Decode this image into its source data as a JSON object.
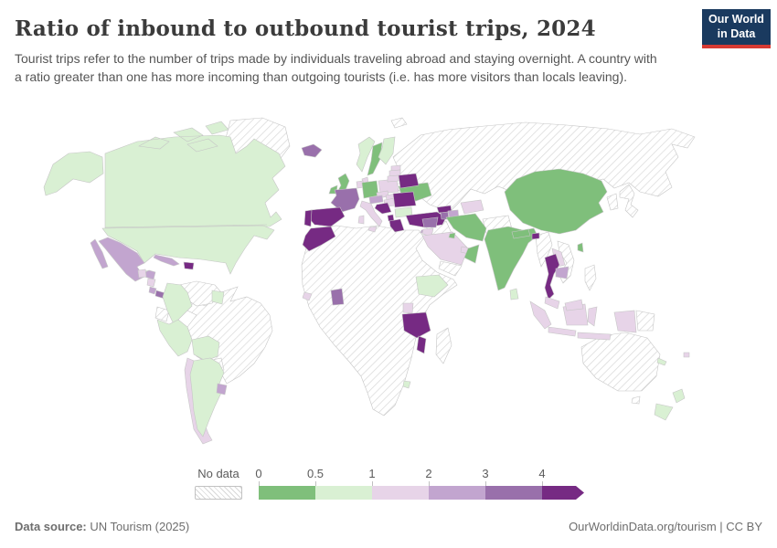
{
  "header": {
    "title": "Ratio of inbound to outbound tourist trips, 2024",
    "subtitle": "Tourist trips refer to the number of trips made by individuals traveling abroad and staying overnight. A country with a ratio greater than one has more incoming than outgoing tourists (i.e. has more visitors than locals leaving).",
    "logo": {
      "line1": "Our World",
      "line2": "in Data",
      "bg_color": "#1a3a5f",
      "accent_color": "#d73a33"
    }
  },
  "legend": {
    "no_data_label": "No data",
    "ticks": [
      "0",
      "0.5",
      "1",
      "2",
      "3",
      "4"
    ],
    "bins": [
      {
        "label": "0-0.5",
        "color": "#7fbf7b"
      },
      {
        "label": "0.5-1",
        "color": "#d9f0d3"
      },
      {
        "label": "1-2",
        "color": "#e7d4e8"
      },
      {
        "label": "2-3",
        "color": "#c2a5cf"
      },
      {
        "label": "3-4",
        "color": "#9970ab"
      },
      {
        "label": "4+",
        "color": "#762a83"
      }
    ]
  },
  "footer": {
    "source_label": "Data source:",
    "source_value": " UN Tourism (2025)",
    "right_text": "OurWorldinData.org/tourism | CC BY"
  },
  "chart_data": {
    "type": "choropleth",
    "title": "Ratio of inbound to outbound tourist trips, 2024",
    "unit": "ratio of inbound to outbound tourist trips",
    "bins": [
      {
        "label": "0-0.5",
        "color": "#7fbf7b"
      },
      {
        "label": "0.5-1",
        "color": "#d9f0d3"
      },
      {
        "label": "1-2",
        "color": "#e7d4e8"
      },
      {
        "label": "2-3",
        "color": "#c2a5cf"
      },
      {
        "label": "3-4",
        "color": "#9970ab"
      },
      {
        "label": "4+",
        "color": "#762a83"
      }
    ],
    "countries": {
      "Canada": "0.5-1",
      "United States": "0.5-1",
      "Mexico": "2-3",
      "Cuba": "2-3",
      "Dominican Republic": "4+",
      "Guatemala": "1-2",
      "Nicaragua": "1-2",
      "Costa Rica": "2-3",
      "Panama": "3-4",
      "Colombia": "0.5-1",
      "Peru": "0.5-1",
      "Bolivia": "0.5-1",
      "Chile": "1-2",
      "Argentina": "0.5-1",
      "Uruguay": "2-3",
      "Guyana": "0.5-1",
      "Iceland": "3-4",
      "United Kingdom": "0-0.5",
      "Ireland": "0-0.5",
      "Norway": "0.5-1",
      "Sweden": "0-0.5",
      "Finland": "0.5-1",
      "Denmark": "1-2",
      "Netherlands": "1-2",
      "Germany": "0-0.5",
      "France": "3-4",
      "Spain": "4+",
      "Portugal": "4+",
      "Italy": "1-2",
      "Austria": "2-3",
      "Czechia": "1-2",
      "Slovakia": "1-2",
      "Poland": "1-2",
      "Estonia": "1-2",
      "Latvia": "1-2",
      "Lithuania": "1-2",
      "Belarus": "4+",
      "Ukraine": "0-0.5",
      "Hungary": "1-2",
      "Romania": "4+",
      "Croatia": "4+",
      "Albania": "4+",
      "Greece": "4+",
      "Bulgaria": "0.5-1",
      "Turkey": "4+",
      "Cyprus": "2-3",
      "Georgia": "4+",
      "Armenia": "3-4",
      "Azerbaijan": "2-3",
      "Morocco": "4+",
      "Sierra Leone": "1-2",
      "Ghana": "3-4",
      "Ethiopia": "0.5-1",
      "Uganda": "1-2",
      "Tanzania": "4+",
      "Malawi": "4+",
      "Eswatini": "0.5-1",
      "Syria": "3-4",
      "Jordan": "1-2",
      "Saudi Arabia": "1-2",
      "Kuwait": "0-0.5",
      "United Arab Emirates": "1-2",
      "Oman": "0-0.5",
      "Iran": "0-0.5",
      "Uzbekistan": "1-2",
      "China": "0-0.5",
      "Taiwan": "0-0.5",
      "India": "0-0.5",
      "Nepal": "0-0.5",
      "Bhutan": "4+",
      "Sri Lanka": "0.5-1",
      "Thailand": "4+",
      "Laos": "1-2",
      "Cambodia": "2-3",
      "Malaysia": "1-2",
      "Indonesia": "1-2",
      "Fiji": "1-2",
      "New Caledonia": "0.5-1",
      "New Zealand": "0.5-1"
    },
    "no_data_countries": [
      "Greenland",
      "Russia",
      "Brazil",
      "Venezuela",
      "Ecuador",
      "Paraguay",
      "Honduras",
      "Egypt",
      "Algeria",
      "Libya",
      "Sudan",
      "Nigeria",
      "Democratic Republic of Congo",
      "South Africa",
      "Madagascar",
      "Kazakhstan",
      "Mongolia",
      "Afghanistan",
      "Pakistan",
      "Iraq",
      "Yemen",
      "Myanmar",
      "Vietnam",
      "Philippines",
      "Japan",
      "South Korea",
      "North Korea",
      "Australia",
      "Papua New Guinea"
    ]
  }
}
